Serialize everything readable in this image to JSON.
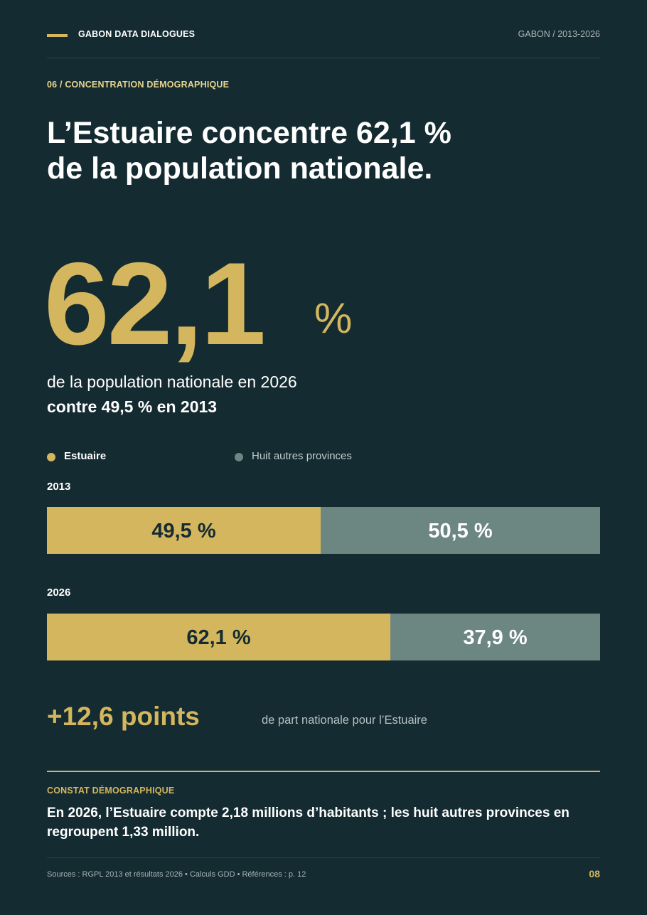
{
  "header": {
    "brand": "GABON DATA DIALOGUES",
    "right": "GABON / 2013-2026"
  },
  "section": {
    "label": "06 / CONCENTRATION DÉMOGRAPHIQUE"
  },
  "headline": {
    "line1": "L’Estuaire concentre 62,1 %",
    "line2": "de la population nationale."
  },
  "hero": {
    "value": "62,1",
    "unit": "%",
    "sub1": "de la population nationale en 2026",
    "sub2": "contre 49,5 % en 2013"
  },
  "chart_data": {
    "type": "bar",
    "orientation": "horizontal",
    "stacked": true,
    "normalized": true,
    "categories": [
      "2013",
      "2026"
    ],
    "series": [
      {
        "name": "Estuaire",
        "values": [
          49.5,
          62.1
        ],
        "labels": [
          "49,5 %",
          "62,1 %"
        ],
        "color": "#d4b65e"
      },
      {
        "name": "Huit autres provinces",
        "values": [
          50.5,
          37.9
        ],
        "labels": [
          "50,5 %",
          "37,9 %"
        ],
        "color": "#6c8681"
      }
    ],
    "xlim": [
      0,
      100
    ],
    "legend": "top-left",
    "grid": false
  },
  "delta": {
    "value": "+12,6 points",
    "caption": "de part nationale pour l’Estuaire"
  },
  "fact": {
    "label": "CONSTAT DÉMOGRAPHIQUE",
    "text": "En 2026, l’Estuaire compte 2,18 millions d’habitants ; les huit autres provinces en regroupent 1,33 million."
  },
  "footer": {
    "sources": "Sources : RGPL 2013 et résultats 2026 • Calculs GDD • Références : p. 12",
    "page": "08"
  },
  "colors": {
    "background": "#142b31",
    "accent": "#d4b65e",
    "secondary": "#6c8681",
    "bar_label_dark": "#142b31"
  }
}
